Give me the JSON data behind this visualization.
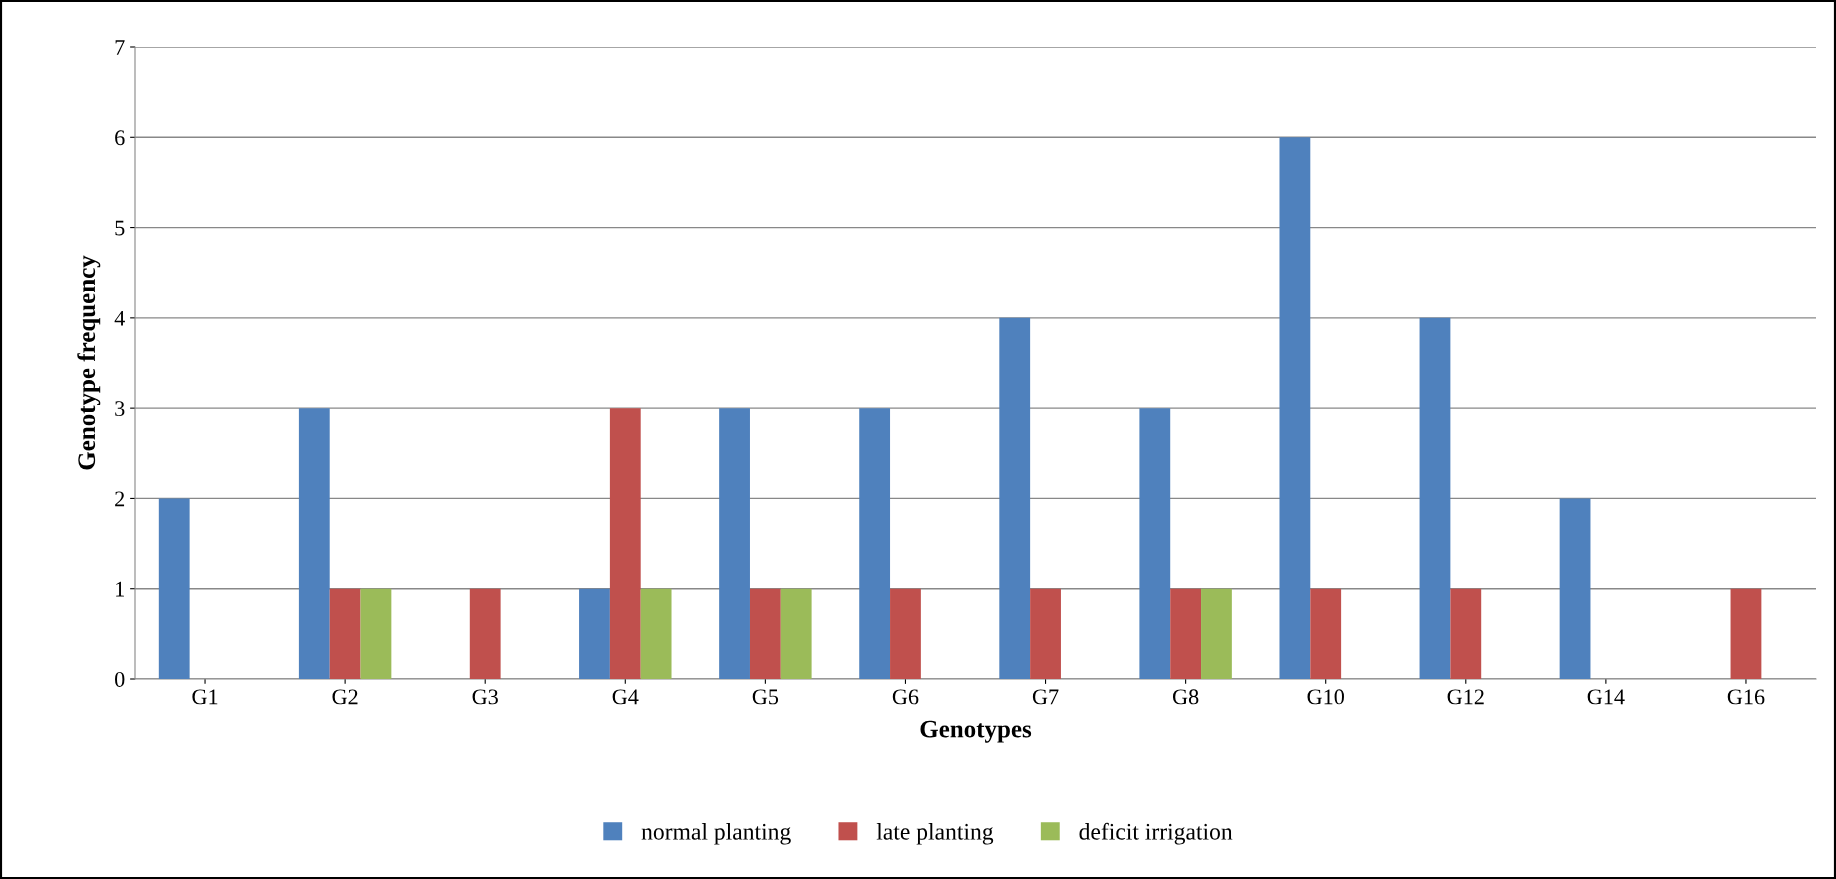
{
  "chart_data": {
    "type": "bar",
    "xlabel": "Genotypes",
    "ylabel": "Genotype frequency",
    "categories": [
      "G1",
      "G2",
      "G3",
      "G4",
      "G5",
      "G6",
      "G7",
      "G8",
      "G10",
      "G12",
      "G14",
      "G16"
    ],
    "series": [
      {
        "name": "normal planting",
        "color": "#4f81bd",
        "values": [
          2,
          3,
          0,
          1,
          3,
          3,
          4,
          3,
          6,
          4,
          2,
          0
        ]
      },
      {
        "name": "late planting",
        "color": "#c0504d",
        "values": [
          0,
          1,
          1,
          3,
          1,
          1,
          1,
          1,
          1,
          1,
          0,
          1
        ]
      },
      {
        "name": "deficit irrigation",
        "color": "#9bbb59",
        "values": [
          0,
          1,
          0,
          1,
          1,
          0,
          0,
          1,
          0,
          0,
          0,
          0
        ]
      }
    ],
    "ylim": [
      0,
      7
    ],
    "yticks": [
      0,
      1,
      2,
      3,
      4,
      5,
      6,
      7
    ],
    "grid": "y",
    "legend": "bottom"
  }
}
